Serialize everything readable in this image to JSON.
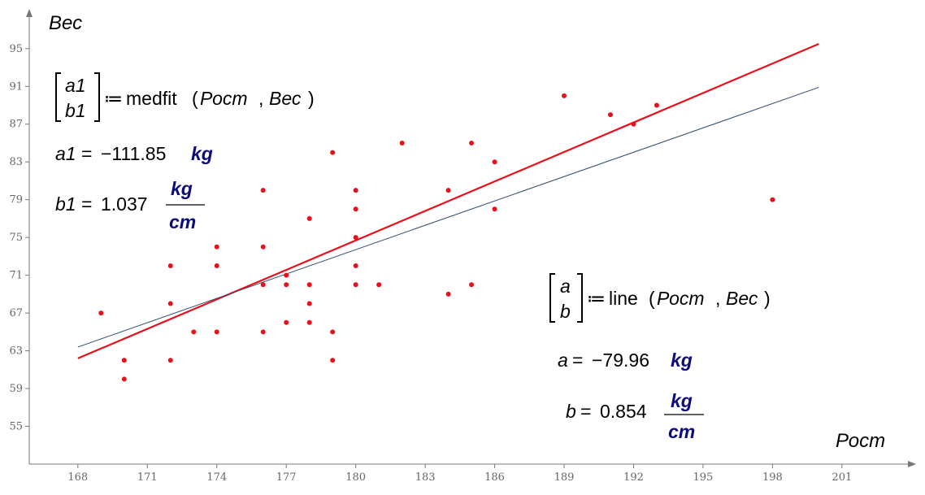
{
  "chart_data": {
    "type": "scatter",
    "xlabel": "Рост",
    "ylabel": "Вес",
    "xlim": [
      165.9,
      204.2
    ],
    "ylim": [
      51.0,
      99.2
    ],
    "x_ticks": [
      168,
      171,
      174,
      177,
      180,
      183,
      186,
      189,
      192,
      195,
      198,
      201
    ],
    "y_ticks": [
      55,
      59,
      63,
      67,
      71,
      75,
      79,
      83,
      87,
      91,
      95
    ],
    "grid": false,
    "legend": "none",
    "point_color": "#e8101a",
    "points": [
      [
        169,
        67
      ],
      [
        170,
        62
      ],
      [
        170,
        60
      ],
      [
        172,
        72
      ],
      [
        172,
        68
      ],
      [
        172,
        62
      ],
      [
        173,
        65
      ],
      [
        174,
        74
      ],
      [
        174,
        72
      ],
      [
        174,
        65
      ],
      [
        176,
        80
      ],
      [
        176,
        74
      ],
      [
        176,
        70
      ],
      [
        176,
        65
      ],
      [
        177,
        71
      ],
      [
        177,
        70
      ],
      [
        177,
        66
      ],
      [
        178,
        77
      ],
      [
        178,
        70
      ],
      [
        178,
        68
      ],
      [
        178,
        66
      ],
      [
        179,
        84
      ],
      [
        179,
        65
      ],
      [
        179,
        62
      ],
      [
        180,
        80
      ],
      [
        180,
        78
      ],
      [
        180,
        75
      ],
      [
        180,
        72
      ],
      [
        180,
        70
      ],
      [
        181,
        70
      ],
      [
        182,
        85
      ],
      [
        184,
        80
      ],
      [
        184,
        69
      ],
      [
        185,
        85
      ],
      [
        185,
        70
      ],
      [
        186,
        83
      ],
      [
        186,
        78
      ],
      [
        189,
        90
      ],
      [
        191,
        88
      ],
      [
        192,
        87
      ],
      [
        193,
        89
      ],
      [
        198,
        79
      ]
    ],
    "lines": [
      {
        "color": "#e8101a",
        "from": [
          168,
          62.2
        ],
        "to": [
          200,
          95.5
        ]
      },
      {
        "color": "#2e4a6b",
        "from": [
          168,
          63.4
        ],
        "to": [
          200,
          90.9
        ]
      }
    ],
    "annotations": {
      "medfit": {
        "vec_top": "a1",
        "vec_bottom": "b1",
        "assign": "≔",
        "func": "medfit",
        "arg1": "Рост",
        "arg2": "Вес",
        "a_name": "a1",
        "a_value": "−111.85",
        "a_unit": "kg",
        "b_name": "b1",
        "b_value": "1.037",
        "b_unit_num": "kg",
        "b_unit_den": "cm"
      },
      "line": {
        "vec_top": "a",
        "vec_bottom": "b",
        "assign": "≔",
        "func": "line",
        "arg1": "Рост",
        "arg2": "Вес",
        "a_name": "a",
        "a_value": "−79.96",
        "a_unit": "kg",
        "b_name": "b",
        "b_value": "0.854",
        "b_unit_num": "kg",
        "b_unit_den": "cm"
      }
    }
  }
}
